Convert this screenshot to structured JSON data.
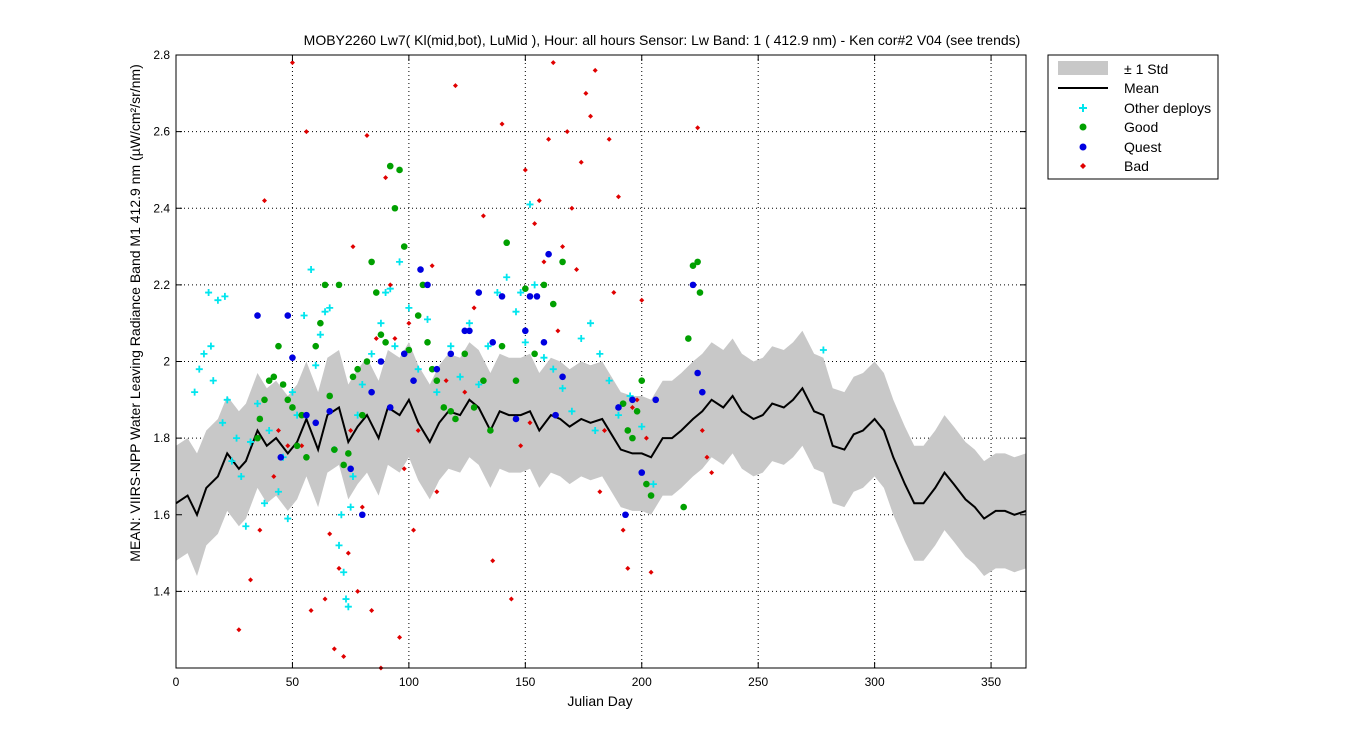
{
  "chart_data": {
    "type": "scatter",
    "title": "MOBY2260   Lw7( Kl(mid,bot), LuMid ),   Hour: all hours  Sensor: Lw Band: 1 ( 412.9 nm)  - Ken cor#2 V04 (see trends)",
    "xlabel": "Julian Day",
    "ylabel": "MEAN: VIIRS-NPP Water Leaving Radiance Band M1 412.9 nm (µW/cm²/sr/nm)",
    "xlim": [
      0,
      365
    ],
    "ylim": [
      1.2,
      2.8
    ],
    "xticks": [
      0,
      50,
      100,
      150,
      200,
      250,
      300,
      350
    ],
    "yticks": [
      1.4,
      1.6,
      1.8,
      2,
      2.2,
      2.4,
      2.6,
      2.8
    ],
    "grid": "dotted",
    "legend_position": "outside top-right",
    "legend": [
      "± 1 Std",
      "Mean",
      "Other deploys",
      "Good",
      "Quest",
      "Bad"
    ],
    "colors": {
      "std_band": "#c8c8c8",
      "mean": "#000000",
      "other": "#00e5ee",
      "good": "#00a000",
      "quest": "#0000e0",
      "bad": "#e00000"
    },
    "mean": {
      "x": [
        0,
        5,
        9,
        13,
        18,
        22,
        27,
        30,
        35,
        39,
        43,
        48,
        52,
        56,
        61,
        65,
        70,
        74,
        78,
        82,
        87,
        91,
        96,
        100,
        104,
        109,
        113,
        117,
        122,
        126,
        130,
        135,
        139,
        143,
        148,
        152,
        156,
        161,
        165,
        169,
        174,
        178,
        183,
        187,
        191,
        196,
        200,
        204,
        209,
        213,
        217,
        222,
        226,
        230,
        235,
        239,
        243,
        248,
        252,
        256,
        261,
        265,
        269,
        274,
        278,
        282,
        287,
        291,
        295,
        300,
        304,
        308,
        313,
        317,
        321,
        326,
        330,
        334,
        339,
        343,
        347,
        352,
        356,
        360,
        365
      ],
      "y": [
        1.63,
        1.65,
        1.6,
        1.67,
        1.7,
        1.76,
        1.72,
        1.74,
        1.82,
        1.78,
        1.8,
        1.76,
        1.79,
        1.85,
        1.77,
        1.86,
        1.88,
        1.79,
        1.83,
        1.86,
        1.8,
        1.88,
        1.86,
        1.9,
        1.84,
        1.79,
        1.84,
        1.87,
        1.86,
        1.9,
        1.88,
        1.82,
        1.87,
        1.86,
        1.86,
        1.87,
        1.82,
        1.86,
        1.85,
        1.83,
        1.85,
        1.84,
        1.85,
        1.81,
        1.77,
        1.76,
        1.76,
        1.75,
        1.8,
        1.8,
        1.82,
        1.85,
        1.87,
        1.9,
        1.88,
        1.91,
        1.87,
        1.85,
        1.86,
        1.89,
        1.88,
        1.9,
        1.93,
        1.87,
        1.86,
        1.78,
        1.77,
        1.81,
        1.82,
        1.85,
        1.82,
        1.75,
        1.68,
        1.63,
        1.63,
        1.67,
        1.71,
        1.68,
        1.64,
        1.62,
        1.59,
        1.61,
        1.61,
        1.6,
        1.61
      ]
    },
    "std_upper": [
      1.78,
      1.8,
      1.76,
      1.82,
      1.85,
      1.91,
      1.87,
      1.89,
      1.97,
      1.93,
      1.95,
      1.91,
      1.94,
      2.0,
      1.92,
      2.01,
      2.03,
      1.94,
      1.98,
      2.01,
      1.95,
      2.03,
      2.01,
      2.05,
      1.99,
      1.94,
      1.99,
      2.02,
      2.01,
      2.05,
      2.03,
      1.97,
      2.02,
      2.01,
      2.01,
      2.02,
      1.97,
      2.01,
      2.0,
      1.98,
      2.0,
      1.99,
      2.0,
      1.96,
      1.92,
      1.91,
      1.91,
      1.9,
      1.95,
      1.95,
      1.97,
      2.0,
      2.02,
      2.05,
      2.03,
      2.06,
      2.02,
      2.0,
      2.01,
      2.04,
      2.03,
      2.05,
      2.08,
      2.02,
      2.01,
      1.93,
      1.92,
      1.96,
      1.97,
      2.0,
      1.97,
      1.9,
      1.83,
      1.78,
      1.78,
      1.82,
      1.86,
      1.83,
      1.79,
      1.77,
      1.74,
      1.76,
      1.76,
      1.75,
      1.76
    ],
    "std_lower": [
      1.48,
      1.5,
      1.44,
      1.52,
      1.55,
      1.61,
      1.57,
      1.59,
      1.67,
      1.63,
      1.65,
      1.61,
      1.64,
      1.7,
      1.62,
      1.71,
      1.73,
      1.64,
      1.68,
      1.71,
      1.65,
      1.73,
      1.71,
      1.75,
      1.69,
      1.64,
      1.69,
      1.72,
      1.71,
      1.75,
      1.73,
      1.67,
      1.72,
      1.71,
      1.71,
      1.72,
      1.67,
      1.71,
      1.7,
      1.68,
      1.7,
      1.69,
      1.7,
      1.66,
      1.62,
      1.61,
      1.61,
      1.6,
      1.65,
      1.65,
      1.67,
      1.7,
      1.72,
      1.75,
      1.73,
      1.76,
      1.72,
      1.7,
      1.71,
      1.74,
      1.73,
      1.75,
      1.78,
      1.72,
      1.71,
      1.63,
      1.62,
      1.66,
      1.67,
      1.7,
      1.67,
      1.6,
      1.53,
      1.48,
      1.48,
      1.52,
      1.56,
      1.53,
      1.49,
      1.47,
      1.44,
      1.46,
      1.46,
      1.45,
      1.46
    ],
    "other_deploys": {
      "x": [
        8,
        10,
        12,
        14,
        15,
        16,
        18,
        20,
        21,
        22,
        24,
        26,
        28,
        30,
        32,
        35,
        38,
        40,
        44,
        46,
        48,
        50,
        52,
        55,
        58,
        60,
        62,
        64,
        66,
        68,
        70,
        71,
        72,
        73,
        74,
        75,
        76,
        78,
        80,
        84,
        88,
        90,
        92,
        94,
        96,
        100,
        104,
        108,
        112,
        118,
        122,
        126,
        130,
        134,
        138,
        142,
        146,
        148,
        150,
        152,
        154,
        158,
        162,
        166,
        170,
        174,
        178,
        180,
        182,
        186,
        190,
        195,
        200,
        205,
        278
      ],
      "y": [
        1.92,
        1.98,
        2.02,
        2.18,
        2.04,
        1.95,
        2.16,
        1.84,
        2.17,
        1.9,
        1.74,
        1.8,
        1.7,
        1.57,
        1.79,
        1.89,
        1.63,
        1.82,
        1.66,
        1.75,
        1.59,
        1.92,
        1.86,
        2.12,
        2.24,
        1.99,
        2.07,
        2.13,
        2.14,
        1.77,
        1.52,
        1.6,
        1.45,
        1.38,
        1.36,
        1.62,
        1.7,
        1.86,
        1.94,
        2.02,
        2.1,
        2.18,
        2.19,
        2.04,
        2.26,
        2.14,
        1.98,
        2.11,
        1.92,
        2.04,
        1.96,
        2.1,
        1.94,
        2.04,
        2.18,
        2.22,
        2.13,
        2.18,
        2.05,
        2.41,
        2.2,
        2.01,
        1.98,
        1.93,
        1.87,
        2.06,
        2.1,
        1.82,
        2.02,
        1.95,
        1.86,
        1.91,
        1.83,
        1.68,
        2.03
      ]
    },
    "good": {
      "x": [
        35,
        36,
        38,
        40,
        42,
        44,
        46,
        48,
        50,
        52,
        54,
        56,
        60,
        62,
        64,
        66,
        68,
        70,
        72,
        74,
        76,
        78,
        80,
        82,
        84,
        86,
        88,
        90,
        92,
        94,
        96,
        98,
        100,
        104,
        106,
        108,
        110,
        112,
        115,
        118,
        120,
        124,
        128,
        132,
        135,
        140,
        142,
        146,
        150,
        154,
        158,
        162,
        166,
        192,
        194,
        196,
        198,
        200,
        202,
        204,
        218,
        220,
        222,
        224,
        225
      ],
      "y": [
        1.8,
        1.85,
        1.9,
        1.95,
        1.96,
        2.04,
        1.94,
        1.9,
        1.88,
        1.78,
        1.86,
        1.75,
        2.04,
        2.1,
        2.2,
        1.91,
        1.77,
        2.2,
        1.73,
        1.76,
        1.96,
        1.98,
        1.86,
        2.0,
        2.26,
        2.18,
        2.07,
        2.05,
        2.51,
        2.4,
        2.5,
        2.3,
        2.03,
        2.12,
        2.2,
        2.05,
        1.98,
        1.95,
        1.88,
        1.87,
        1.85,
        2.02,
        1.88,
        1.95,
        1.82,
        2.04,
        2.31,
        1.95,
        2.19,
        2.02,
        2.2,
        2.15,
        2.26,
        1.89,
        1.82,
        1.8,
        1.87,
        1.95,
        1.68,
        1.65,
        1.62,
        2.06,
        2.25,
        2.26,
        2.18
      ]
    },
    "quest": {
      "x": [
        35,
        45,
        48,
        50,
        56,
        60,
        66,
        75,
        80,
        84,
        88,
        92,
        98,
        102,
        105,
        108,
        112,
        118,
        124,
        126,
        130,
        136,
        140,
        146,
        150,
        152,
        155,
        158,
        160,
        163,
        166,
        190,
        193,
        196,
        200,
        206,
        222,
        224,
        226
      ],
      "y": [
        2.12,
        1.75,
        2.12,
        2.01,
        1.86,
        1.84,
        1.87,
        1.72,
        1.6,
        1.92,
        2.0,
        1.88,
        2.02,
        1.95,
        2.24,
        2.2,
        1.98,
        2.02,
        2.08,
        2.08,
        2.18,
        2.05,
        2.17,
        1.85,
        2.08,
        2.17,
        2.17,
        2.05,
        2.28,
        1.86,
        1.96,
        1.88,
        1.6,
        1.9,
        1.71,
        1.9,
        2.2,
        1.97,
        1.92
      ]
    },
    "bad": {
      "x": [
        27,
        32,
        36,
        38,
        42,
        44,
        48,
        50,
        54,
        56,
        58,
        62,
        64,
        66,
        68,
        70,
        72,
        74,
        75,
        76,
        78,
        80,
        82,
        84,
        86,
        88,
        90,
        92,
        94,
        96,
        98,
        100,
        102,
        104,
        106,
        108,
        110,
        112,
        116,
        120,
        124,
        128,
        132,
        136,
        140,
        144,
        148,
        150,
        152,
        154,
        156,
        158,
        160,
        162,
        164,
        166,
        168,
        170,
        172,
        174,
        176,
        178,
        180,
        182,
        184,
        186,
        188,
        190,
        192,
        194,
        196,
        198,
        200,
        202,
        204,
        224,
        226,
        228,
        230
      ],
      "y": [
        1.3,
        1.43,
        1.56,
        2.42,
        1.7,
        1.82,
        1.78,
        2.78,
        1.78,
        2.6,
        1.35,
        2.1,
        1.38,
        1.55,
        1.25,
        1.46,
        1.23,
        1.5,
        1.82,
        2.3,
        1.4,
        1.62,
        2.59,
        1.35,
        2.06,
        1.2,
        2.48,
        2.2,
        2.06,
        1.28,
        1.72,
        2.1,
        1.56,
        1.82,
        2.2,
        2.05,
        2.25,
        1.66,
        1.95,
        2.72,
        1.92,
        2.14,
        2.38,
        1.48,
        2.62,
        1.38,
        1.78,
        2.5,
        1.84,
        2.36,
        2.42,
        2.26,
        2.58,
        2.78,
        2.08,
        2.3,
        2.6,
        2.4,
        2.24,
        2.52,
        2.7,
        2.64,
        2.76,
        1.66,
        1.82,
        2.58,
        2.18,
        2.43,
        1.56,
        1.46,
        1.88,
        1.9,
        2.16,
        1.8,
        1.45,
        2.61,
        1.82,
        1.75,
        1.71
      ]
    }
  }
}
